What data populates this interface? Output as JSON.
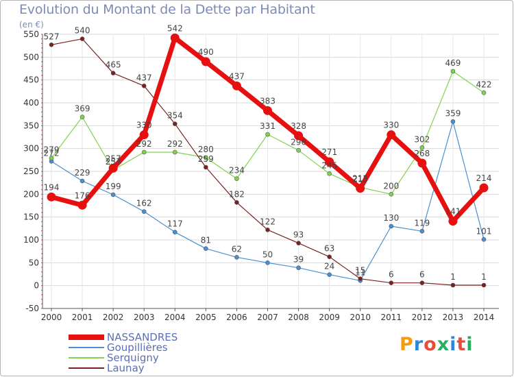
{
  "header": {
    "title": "Evolution du Montant de la Dette par Habitant",
    "unit": "(en €)"
  },
  "logo": {
    "text": "Proxiti",
    "colors": [
      "#f39c12",
      "#2e86de",
      "#e74c3c",
      "#27ae60"
    ]
  },
  "chart_data": {
    "type": "line",
    "title": "Evolution du Montant de la Dette par Habitant",
    "ylabel": "(en €)",
    "xlabel": "",
    "ylim": [
      -50,
      550
    ],
    "yticks": [
      -50,
      0,
      50,
      100,
      150,
      200,
      250,
      300,
      350,
      400,
      450,
      500,
      550
    ],
    "grid": true,
    "categories": [
      "2000",
      "2001",
      "2002",
      "2003",
      "2004",
      "2005",
      "2006",
      "2007",
      "2008",
      "2009",
      "2010",
      "2011",
      "2012",
      "2013",
      "2014"
    ],
    "series": [
      {
        "name": "NASSANDRES",
        "color": "#e61010",
        "emphasis": true,
        "values": [
          194,
          176,
          257,
          330,
          542,
          490,
          437,
          383,
          328,
          271,
          213,
          330,
          268,
          141,
          214
        ]
      },
      {
        "name": "Goupillières",
        "color": "#4a8fd0",
        "emphasis": false,
        "values": [
          272,
          229,
          199,
          162,
          117,
          81,
          62,
          50,
          39,
          24,
          11,
          130,
          119,
          359,
          101
        ]
      },
      {
        "name": "Serquigny",
        "color": "#7ed34a",
        "emphasis": false,
        "values": [
          279,
          369,
          253,
          292,
          292,
          280,
          234,
          331,
          296,
          245,
          215,
          200,
          302,
          469,
          422
        ]
      },
      {
        "name": "Launay",
        "color": "#7b2020",
        "emphasis": false,
        "values": [
          527,
          540,
          465,
          437,
          354,
          259,
          182,
          122,
          93,
          63,
          15,
          6,
          6,
          1,
          1
        ]
      }
    ],
    "legend": "bottom-left"
  }
}
